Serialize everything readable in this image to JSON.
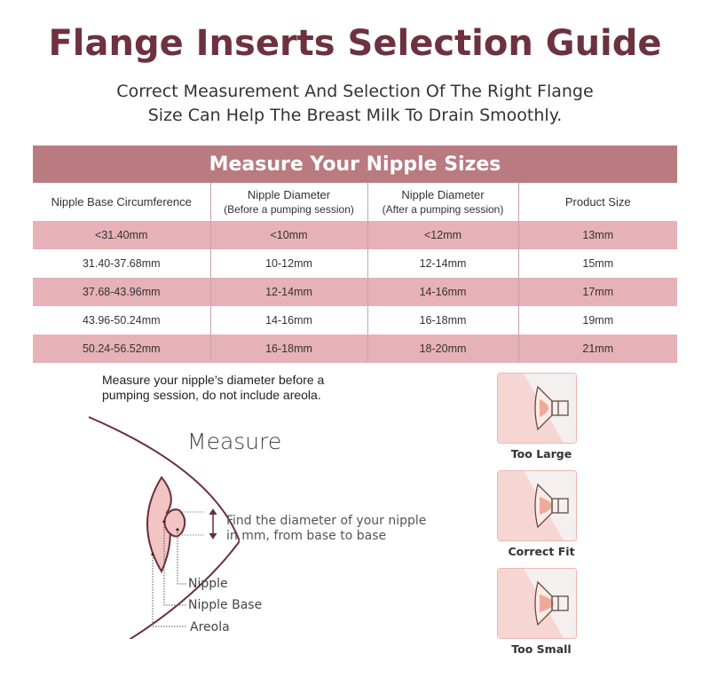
{
  "title": "Flange Inserts Selection Guide",
  "subtitle_line1": "Correct Measurement And Selection Of The Right Flange",
  "subtitle_line2": "Size Can Help The Breast Milk To Drain Smoothly.",
  "table": {
    "heading": "Measure Your Nipple Sizes",
    "columns": [
      {
        "label": "Nipple Base Circumference",
        "sub": ""
      },
      {
        "label": "Nipple Diameter",
        "sub": "(Before a pumping session)"
      },
      {
        "label": "Nipple Diameter",
        "sub": "(After a pumping session)"
      },
      {
        "label": "Product Size",
        "sub": ""
      }
    ],
    "rows": [
      [
        "<31.40mm",
        "<10mm",
        "<12mm",
        "13mm"
      ],
      [
        "31.40-37.68mm",
        "10-12mm",
        "12-14mm",
        "15mm"
      ],
      [
        "37.68-43.96mm",
        "12-14mm",
        "14-16mm",
        "17mm"
      ],
      [
        "43.96-50.24mm",
        "14-16mm",
        "16-18mm",
        "19mm"
      ],
      [
        "50.24-56.52mm",
        "16-18mm",
        "18-20mm",
        "21mm"
      ]
    ]
  },
  "diagram": {
    "note_line1": "Measure your nipple’s diameter before a",
    "note_line2": "pumping session, do not include areola.",
    "heading": "Measure",
    "find_line1": "Find the diameter of your nipple",
    "find_line2": "in mm, from base to base",
    "labels": {
      "nipple": "Nipple",
      "nipple_base": "Nipple Base",
      "areola": "Areola"
    }
  },
  "fits": [
    {
      "label": "Too Large"
    },
    {
      "label": "Correct Fit"
    },
    {
      "label": "Too Small"
    }
  ],
  "colors": {
    "title": "#6e3140",
    "band": "#b97a80",
    "row_pink": "#e7b1b8",
    "outline": "#6a2f3a",
    "skin": "#f2c4c4"
  }
}
